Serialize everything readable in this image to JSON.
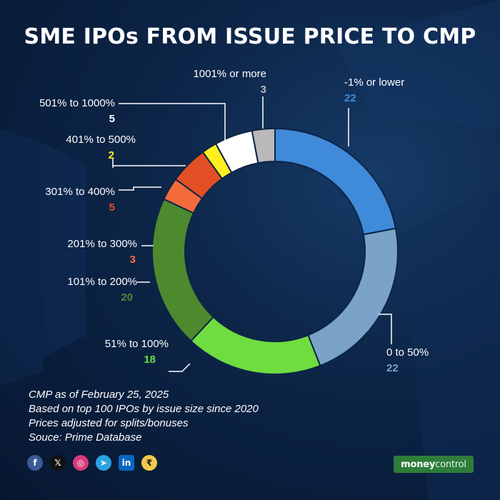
{
  "title": "SME IPOs FROM ISSUE PRICE TO CMP",
  "chart_data": {
    "type": "donut",
    "title": "SME IPOs FROM ISSUE PRICE TO CMP",
    "categories": [
      "-1% or lower",
      "0 to 50%",
      "51% to 100%",
      "101% to 200%",
      "201% to 300%",
      "301% to 400%",
      "401% to 500%",
      "501% to 1000%",
      "1001% or more"
    ],
    "values": [
      22,
      22,
      18,
      20,
      3,
      5,
      2,
      5,
      3
    ],
    "colors": [
      "#3f8ad9",
      "#7ba3c9",
      "#6fdd3f",
      "#4d8a2e",
      "#f36b3a",
      "#e24f24",
      "#ffef1f",
      "#ffffff",
      "#b9b9b9"
    ],
    "value_colors": [
      "#3f8ad9",
      "#7ba3c9",
      "#6fdd3f",
      "#4d8a2e",
      "#f36b3a",
      "#e24f24",
      "#ffef1f",
      "#ffffff",
      "#b9b9b9"
    ]
  },
  "notes": [
    "CMP as of February 25, 2025",
    "Based on top 100 IPOs by issue size since 2020",
    "Prices adjusted for splits/bonuses",
    "Souce: Prime Database"
  ],
  "social_icons": [
    "facebook-icon",
    "x-icon",
    "instagram-icon",
    "telegram-icon",
    "linkedin-icon",
    "moneycontrol-app-icon"
  ],
  "brand": {
    "part1": "money",
    "part2": "control"
  }
}
